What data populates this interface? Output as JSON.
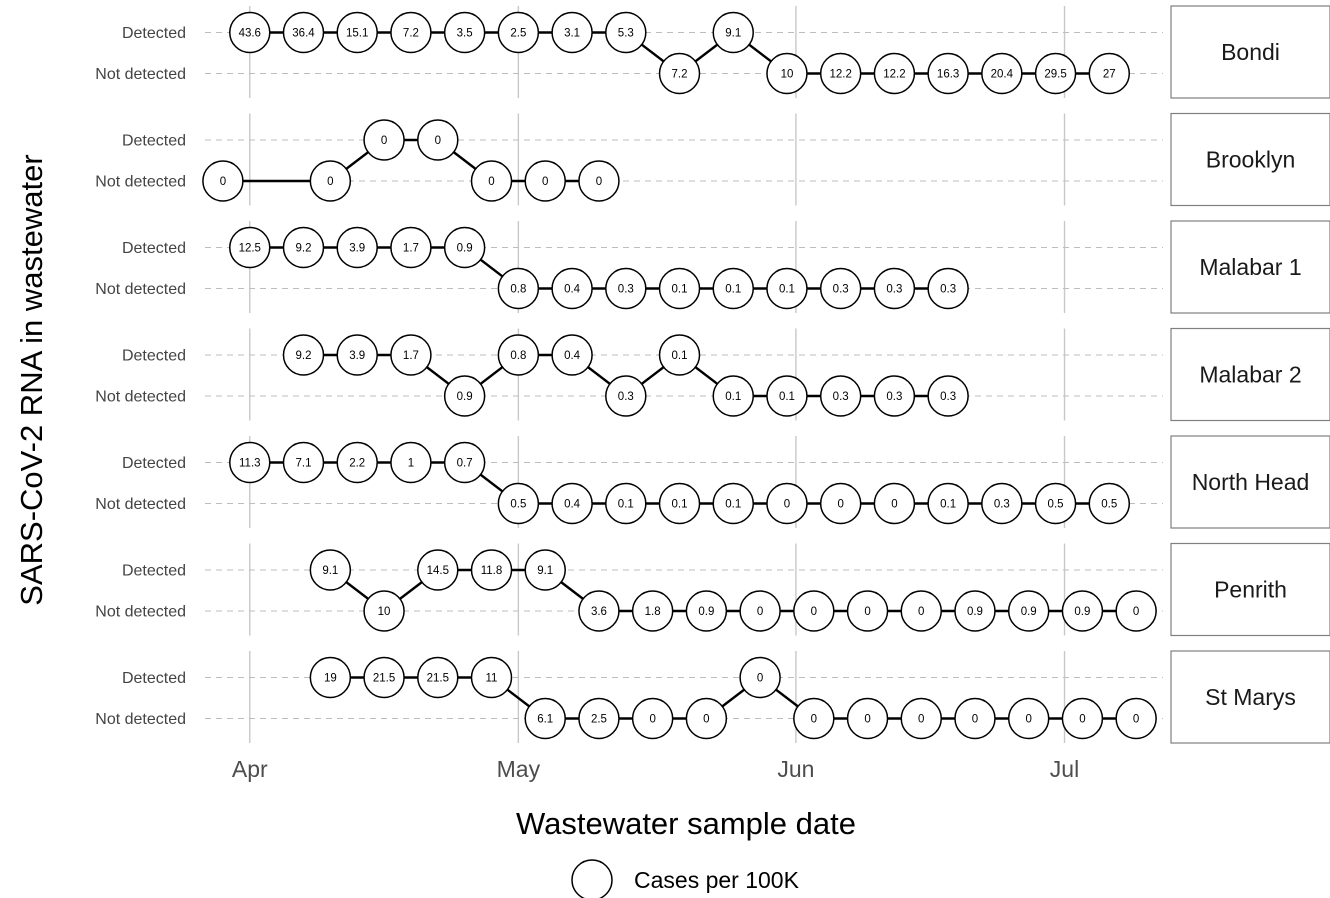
{
  "chart_data": {
    "type": "scatter",
    "xlabel": "Wastewater sample date",
    "ylabel": "SARS-CoV-2 RNA in wastewater",
    "y_levels": [
      "Not detected",
      "Detected"
    ],
    "x_ticks": [
      "Apr",
      "May",
      "Jun",
      "Jul"
    ],
    "x_tick_dates": [
      "2020-04-01",
      "2020-05-01",
      "2020-06-01",
      "2020-07-01"
    ],
    "xlim": [
      "2020-03-27",
      "2020-07-12"
    ],
    "legend": {
      "label": "Cases per 100K",
      "position": "bottom"
    },
    "grid": true,
    "facets": [
      {
        "name": "Bondi",
        "points": [
          {
            "date": "2020-04-01",
            "status": "Detected",
            "cases": "43.6"
          },
          {
            "date": "2020-04-07",
            "status": "Detected",
            "cases": "36.4"
          },
          {
            "date": "2020-04-13",
            "status": "Detected",
            "cases": "15.1"
          },
          {
            "date": "2020-04-19",
            "status": "Detected",
            "cases": "7.2"
          },
          {
            "date": "2020-04-25",
            "status": "Detected",
            "cases": "3.5"
          },
          {
            "date": "2020-05-01",
            "status": "Detected",
            "cases": "2.5"
          },
          {
            "date": "2020-05-07",
            "status": "Detected",
            "cases": "3.1"
          },
          {
            "date": "2020-05-13",
            "status": "Detected",
            "cases": "5.3"
          },
          {
            "date": "2020-05-19",
            "status": "Not detected",
            "cases": "7.2"
          },
          {
            "date": "2020-05-25",
            "status": "Detected",
            "cases": "9.1"
          },
          {
            "date": "2020-05-31",
            "status": "Not detected",
            "cases": "10"
          },
          {
            "date": "2020-06-06",
            "status": "Not detected",
            "cases": "12.2"
          },
          {
            "date": "2020-06-12",
            "status": "Not detected",
            "cases": "12.2"
          },
          {
            "date": "2020-06-18",
            "status": "Not detected",
            "cases": "16.3"
          },
          {
            "date": "2020-06-24",
            "status": "Not detected",
            "cases": "20.4"
          },
          {
            "date": "2020-06-30",
            "status": "Not detected",
            "cases": "29.5"
          },
          {
            "date": "2020-07-06",
            "status": "Not detected",
            "cases": "27"
          }
        ]
      },
      {
        "name": "Brooklyn",
        "points": [
          {
            "date": "2020-03-29",
            "status": "Not detected",
            "cases": "0"
          },
          {
            "date": "2020-04-10",
            "status": "Not detected",
            "cases": "0"
          },
          {
            "date": "2020-04-16",
            "status": "Detected",
            "cases": "0"
          },
          {
            "date": "2020-04-22",
            "status": "Detected",
            "cases": "0"
          },
          {
            "date": "2020-04-28",
            "status": "Not detected",
            "cases": "0"
          },
          {
            "date": "2020-05-04",
            "status": "Not detected",
            "cases": "0"
          },
          {
            "date": "2020-05-10",
            "status": "Not detected",
            "cases": "0"
          }
        ]
      },
      {
        "name": "Malabar 1",
        "points": [
          {
            "date": "2020-04-01",
            "status": "Detected",
            "cases": "12.5"
          },
          {
            "date": "2020-04-07",
            "status": "Detected",
            "cases": "9.2"
          },
          {
            "date": "2020-04-13",
            "status": "Detected",
            "cases": "3.9"
          },
          {
            "date": "2020-04-19",
            "status": "Detected",
            "cases": "1.7"
          },
          {
            "date": "2020-04-25",
            "status": "Detected",
            "cases": "0.9"
          },
          {
            "date": "2020-05-01",
            "status": "Not detected",
            "cases": "0.8"
          },
          {
            "date": "2020-05-07",
            "status": "Not detected",
            "cases": "0.4"
          },
          {
            "date": "2020-05-13",
            "status": "Not detected",
            "cases": "0.3"
          },
          {
            "date": "2020-05-19",
            "status": "Not detected",
            "cases": "0.1"
          },
          {
            "date": "2020-05-25",
            "status": "Not detected",
            "cases": "0.1"
          },
          {
            "date": "2020-05-31",
            "status": "Not detected",
            "cases": "0.1"
          },
          {
            "date": "2020-06-06",
            "status": "Not detected",
            "cases": "0.3"
          },
          {
            "date": "2020-06-12",
            "status": "Not detected",
            "cases": "0.3"
          },
          {
            "date": "2020-06-18",
            "status": "Not detected",
            "cases": "0.3"
          }
        ]
      },
      {
        "name": "Malabar 2",
        "points": [
          {
            "date": "2020-04-07",
            "status": "Detected",
            "cases": "9.2"
          },
          {
            "date": "2020-04-13",
            "status": "Detected",
            "cases": "3.9"
          },
          {
            "date": "2020-04-19",
            "status": "Detected",
            "cases": "1.7"
          },
          {
            "date": "2020-04-25",
            "status": "Not detected",
            "cases": "0.9"
          },
          {
            "date": "2020-05-01",
            "status": "Detected",
            "cases": "0.8"
          },
          {
            "date": "2020-05-07",
            "status": "Detected",
            "cases": "0.4"
          },
          {
            "date": "2020-05-13",
            "status": "Not detected",
            "cases": "0.3"
          },
          {
            "date": "2020-05-19",
            "status": "Detected",
            "cases": "0.1"
          },
          {
            "date": "2020-05-25",
            "status": "Not detected",
            "cases": "0.1"
          },
          {
            "date": "2020-05-31",
            "status": "Not detected",
            "cases": "0.1"
          },
          {
            "date": "2020-06-06",
            "status": "Not detected",
            "cases": "0.3"
          },
          {
            "date": "2020-06-12",
            "status": "Not detected",
            "cases": "0.3"
          },
          {
            "date": "2020-06-18",
            "status": "Not detected",
            "cases": "0.3"
          }
        ]
      },
      {
        "name": "North Head",
        "points": [
          {
            "date": "2020-04-01",
            "status": "Detected",
            "cases": "11.3"
          },
          {
            "date": "2020-04-07",
            "status": "Detected",
            "cases": "7.1"
          },
          {
            "date": "2020-04-13",
            "status": "Detected",
            "cases": "2.2"
          },
          {
            "date": "2020-04-19",
            "status": "Detected",
            "cases": "1"
          },
          {
            "date": "2020-04-25",
            "status": "Detected",
            "cases": "0.7"
          },
          {
            "date": "2020-05-01",
            "status": "Not detected",
            "cases": "0.5"
          },
          {
            "date": "2020-05-07",
            "status": "Not detected",
            "cases": "0.4"
          },
          {
            "date": "2020-05-13",
            "status": "Not detected",
            "cases": "0.1"
          },
          {
            "date": "2020-05-19",
            "status": "Not detected",
            "cases": "0.1"
          },
          {
            "date": "2020-05-25",
            "status": "Not detected",
            "cases": "0.1"
          },
          {
            "date": "2020-05-31",
            "status": "Not detected",
            "cases": "0"
          },
          {
            "date": "2020-06-06",
            "status": "Not detected",
            "cases": "0"
          },
          {
            "date": "2020-06-12",
            "status": "Not detected",
            "cases": "0"
          },
          {
            "date": "2020-06-18",
            "status": "Not detected",
            "cases": "0.1"
          },
          {
            "date": "2020-06-24",
            "status": "Not detected",
            "cases": "0.3"
          },
          {
            "date": "2020-06-30",
            "status": "Not detected",
            "cases": "0.5"
          },
          {
            "date": "2020-07-06",
            "status": "Not detected",
            "cases": "0.5"
          }
        ]
      },
      {
        "name": "Penrith",
        "points": [
          {
            "date": "2020-04-10",
            "status": "Detected",
            "cases": "9.1"
          },
          {
            "date": "2020-04-16",
            "status": "Not detected",
            "cases": "10"
          },
          {
            "date": "2020-04-22",
            "status": "Detected",
            "cases": "14.5"
          },
          {
            "date": "2020-04-28",
            "status": "Detected",
            "cases": "11.8"
          },
          {
            "date": "2020-05-04",
            "status": "Detected",
            "cases": "9.1"
          },
          {
            "date": "2020-05-10",
            "status": "Not detected",
            "cases": "3.6"
          },
          {
            "date": "2020-05-16",
            "status": "Not detected",
            "cases": "1.8"
          },
          {
            "date": "2020-05-22",
            "status": "Not detected",
            "cases": "0.9"
          },
          {
            "date": "2020-05-28",
            "status": "Not detected",
            "cases": "0"
          },
          {
            "date": "2020-06-03",
            "status": "Not detected",
            "cases": "0"
          },
          {
            "date": "2020-06-09",
            "status": "Not detected",
            "cases": "0"
          },
          {
            "date": "2020-06-15",
            "status": "Not detected",
            "cases": "0"
          },
          {
            "date": "2020-06-21",
            "status": "Not detected",
            "cases": "0.9"
          },
          {
            "date": "2020-06-27",
            "status": "Not detected",
            "cases": "0.9"
          },
          {
            "date": "2020-07-03",
            "status": "Not detected",
            "cases": "0.9"
          },
          {
            "date": "2020-07-09",
            "status": "Not detected",
            "cases": "0"
          }
        ]
      },
      {
        "name": "St Marys",
        "points": [
          {
            "date": "2020-04-10",
            "status": "Detected",
            "cases": "19"
          },
          {
            "date": "2020-04-16",
            "status": "Detected",
            "cases": "21.5"
          },
          {
            "date": "2020-04-22",
            "status": "Detected",
            "cases": "21.5"
          },
          {
            "date": "2020-04-28",
            "status": "Detected",
            "cases": "11"
          },
          {
            "date": "2020-05-04",
            "status": "Not detected",
            "cases": "6.1"
          },
          {
            "date": "2020-05-10",
            "status": "Not detected",
            "cases": "2.5"
          },
          {
            "date": "2020-05-16",
            "status": "Not detected",
            "cases": "0"
          },
          {
            "date": "2020-05-22",
            "status": "Not detected",
            "cases": "0"
          },
          {
            "date": "2020-05-28",
            "status": "Detected",
            "cases": "0"
          },
          {
            "date": "2020-06-03",
            "status": "Not detected",
            "cases": "0"
          },
          {
            "date": "2020-06-09",
            "status": "Not detected",
            "cases": "0"
          },
          {
            "date": "2020-06-15",
            "status": "Not detected",
            "cases": "0"
          },
          {
            "date": "2020-06-21",
            "status": "Not detected",
            "cases": "0"
          },
          {
            "date": "2020-06-27",
            "status": "Not detected",
            "cases": "0"
          },
          {
            "date": "2020-07-03",
            "status": "Not detected",
            "cases": "0"
          },
          {
            "date": "2020-07-09",
            "status": "Not detected",
            "cases": "0"
          }
        ]
      }
    ]
  }
}
